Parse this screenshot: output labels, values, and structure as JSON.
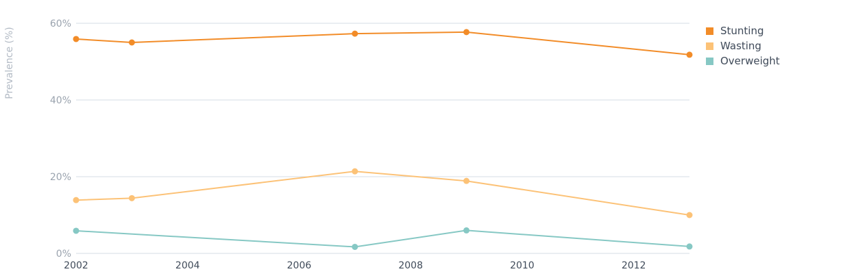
{
  "chart_data": {
    "type": "line",
    "xlabel": "",
    "ylabel": "Prevalence (%)",
    "xlim": [
      2002,
      2013
    ],
    "ylim": [
      0,
      60
    ],
    "x_ticks": [
      "2002",
      "2004",
      "2006",
      "2008",
      "2010",
      "2012"
    ],
    "y_ticks": [
      "0%",
      "20%",
      "40%",
      "60%"
    ],
    "grid": "horizontal",
    "legend_position": "right",
    "series": [
      {
        "name": "Stunting",
        "color": "#f28c28",
        "x": [
          2002,
          2003,
          2007,
          2009,
          2013
        ],
        "values": [
          55.9,
          55.0,
          57.3,
          57.7,
          51.8
        ]
      },
      {
        "name": "Wasting",
        "color": "#fcc277",
        "x": [
          2002,
          2003,
          2007,
          2009,
          2013
        ],
        "values": [
          13.9,
          14.4,
          21.4,
          18.9,
          10.0
        ]
      },
      {
        "name": "Overweight",
        "color": "#86c8c4",
        "x": [
          2002,
          2007,
          2009,
          2013
        ],
        "values": [
          5.9,
          1.7,
          6.0,
          1.8
        ]
      }
    ]
  },
  "colors": {
    "grid": "#d6dde6",
    "tick_text": "#9aa3ae",
    "axis_title": "#b3bbc5"
  }
}
